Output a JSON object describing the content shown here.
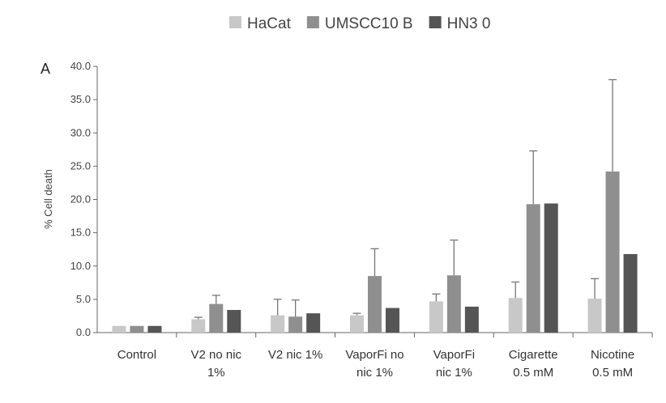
{
  "chart_data": {
    "type": "bar",
    "panel_label": "A",
    "title": "",
    "xlabel": "",
    "ylabel": "% Cell death",
    "ylim": [
      0,
      40
    ],
    "yticks": [
      "0.0",
      "5.0",
      "10.0",
      "15.0",
      "20.0",
      "25.0",
      "30.0",
      "35.0",
      "40.0"
    ],
    "legend_position": "top",
    "categories": [
      [
        "Control"
      ],
      [
        "V2 no nic",
        "1%"
      ],
      [
        "V2 nic 1%"
      ],
      [
        "VaporFi no",
        "nic 1%"
      ],
      [
        "VaporFi",
        "nic 1%"
      ],
      [
        "Cigarette",
        "0.5 mM"
      ],
      [
        "Nicotine",
        "0.5 mM"
      ]
    ],
    "series": [
      {
        "name": "HaCat",
        "color": "#c8c8c8",
        "values": [
          1.0,
          2.0,
          2.6,
          2.6,
          4.7,
          5.2,
          5.1
        ],
        "errors": [
          0.0,
          0.3,
          2.4,
          0.3,
          1.1,
          2.4,
          3.0
        ]
      },
      {
        "name": "UMSCC10 B",
        "color": "#8f8f8f",
        "values": [
          1.0,
          4.3,
          2.4,
          8.5,
          8.6,
          19.3,
          24.2
        ],
        "errors": [
          0.0,
          1.3,
          2.5,
          4.1,
          5.3,
          8.0,
          13.8
        ]
      },
      {
        "name": "HN3 0",
        "color": "#555555",
        "values": [
          1.0,
          3.4,
          2.9,
          3.7,
          3.9,
          19.4,
          11.8
        ],
        "errors": [
          0,
          0,
          0,
          0,
          0,
          0,
          0
        ]
      }
    ],
    "grid": false
  }
}
